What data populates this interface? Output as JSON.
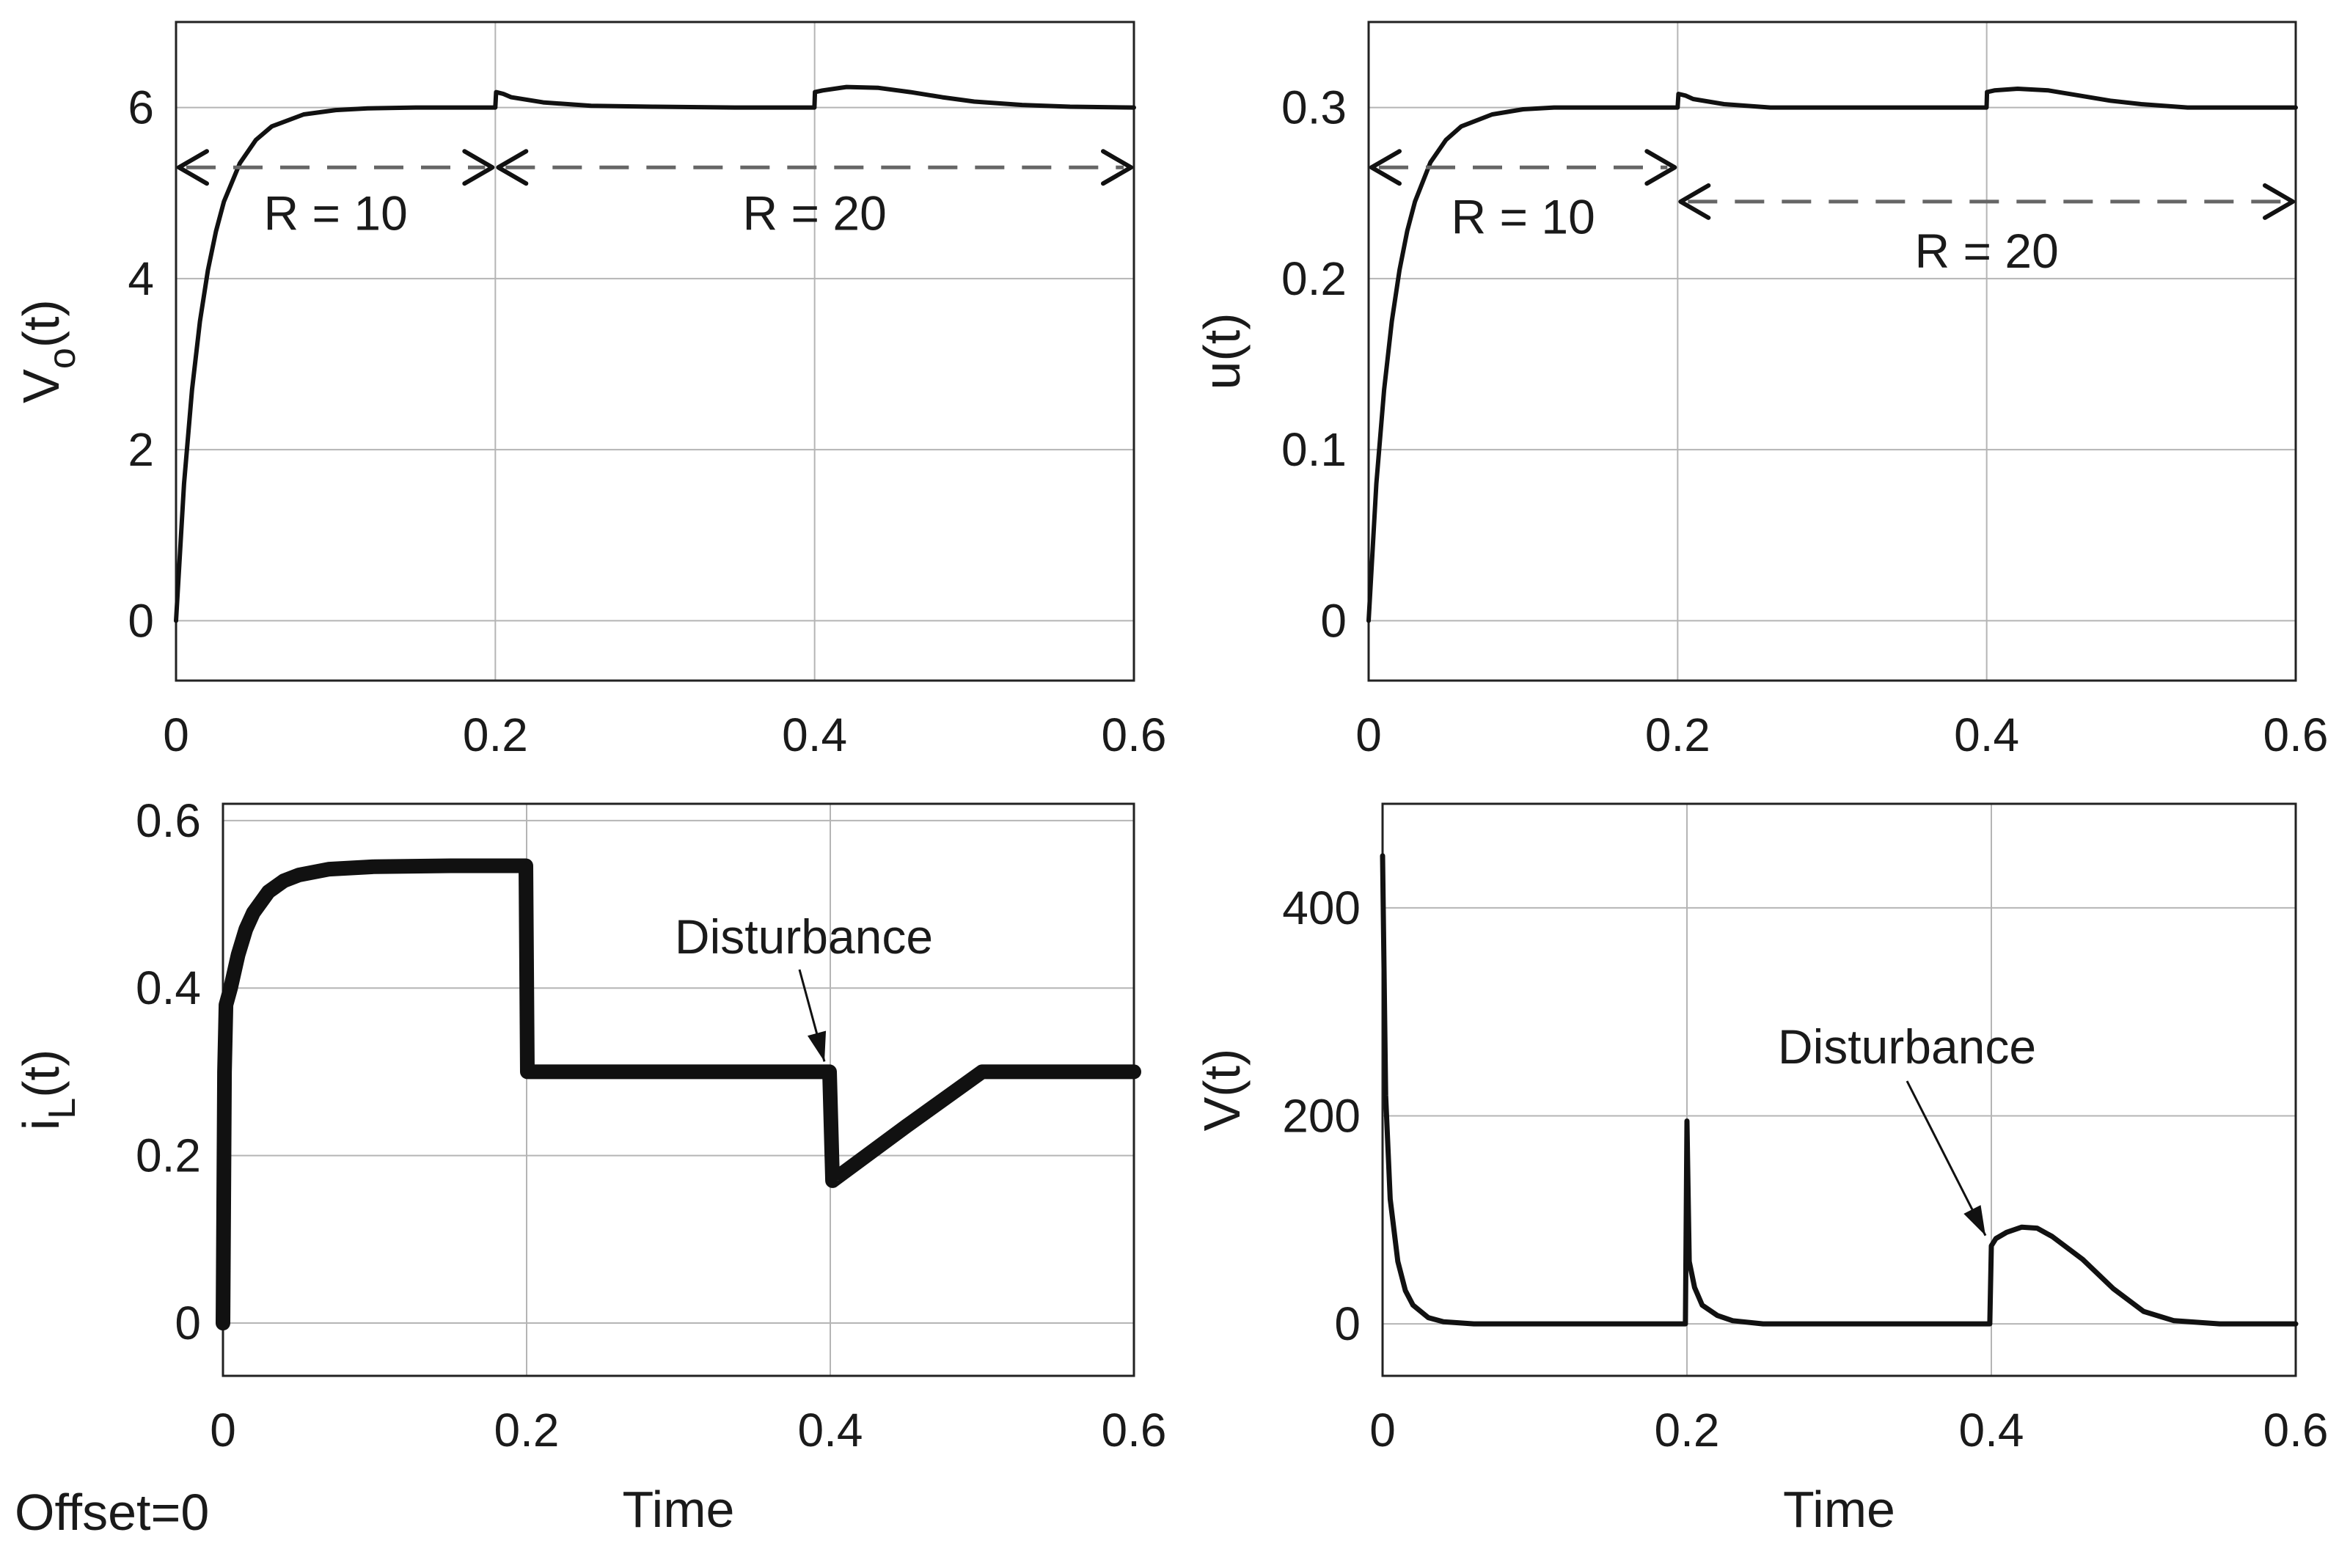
{
  "figure_note": "Offset=0",
  "chart_data": [
    {
      "id": "vo",
      "type": "line",
      "ylabel_main": "V",
      "ylabel_sub": "o",
      "ylabel_tail": "(t)",
      "xlabel": "",
      "xlim": [
        0,
        0.6
      ],
      "ylim": [
        -0.7,
        7.0
      ],
      "xticks": [
        0,
        0.2,
        0.4,
        0.6
      ],
      "xtick_labels": [
        "0",
        "0.2",
        "0.4",
        "0.6"
      ],
      "yticks": [
        0,
        2,
        4,
        6
      ],
      "ytick_labels": [
        "0",
        "2",
        "4",
        "6"
      ],
      "grid": true,
      "series": [
        {
          "name": "Vo(t)",
          "x": [
            0,
            0.005,
            0.01,
            0.015,
            0.02,
            0.025,
            0.03,
            0.04,
            0.05,
            0.06,
            0.08,
            0.1,
            0.12,
            0.15,
            0.2,
            0.2005,
            0.205,
            0.21,
            0.23,
            0.26,
            0.3,
            0.35,
            0.3999,
            0.4002,
            0.405,
            0.42,
            0.44,
            0.46,
            0.48,
            0.5,
            0.53,
            0.56,
            0.6
          ],
          "y": [
            0,
            1.6,
            2.7,
            3.5,
            4.1,
            4.55,
            4.9,
            5.35,
            5.62,
            5.78,
            5.92,
            5.97,
            5.99,
            6.0,
            6.0,
            6.18,
            6.16,
            6.12,
            6.06,
            6.02,
            6.01,
            6.0,
            6.0,
            6.18,
            6.2,
            6.24,
            6.23,
            6.18,
            6.12,
            6.07,
            6.03,
            6.01,
            6.0
          ]
        }
      ],
      "regions": [
        {
          "label": "R = 10",
          "x_start": 0,
          "x_end": 0.2,
          "y": 5.3
        },
        {
          "label": "R = 20",
          "x_start": 0.2,
          "x_end": 0.6,
          "y": 5.3
        }
      ]
    },
    {
      "id": "u",
      "type": "line",
      "ylabel_main": "u(t)",
      "ylabel_sub": "",
      "ylabel_tail": "",
      "xlabel": "",
      "xlim": [
        0,
        0.6
      ],
      "ylim": [
        -0.035,
        0.35
      ],
      "xticks": [
        0,
        0.2,
        0.4,
        0.6
      ],
      "xtick_labels": [
        "0",
        "0.2",
        "0.4",
        "0.6"
      ],
      "yticks": [
        0,
        0.1,
        0.2,
        0.3
      ],
      "ytick_labels": [
        "0",
        "0.1",
        "0.2",
        "0.3"
      ],
      "grid": true,
      "series": [
        {
          "name": "u(t)",
          "x": [
            0,
            0.005,
            0.01,
            0.015,
            0.02,
            0.025,
            0.03,
            0.04,
            0.05,
            0.06,
            0.08,
            0.1,
            0.12,
            0.15,
            0.2,
            0.2005,
            0.205,
            0.21,
            0.23,
            0.26,
            0.3,
            0.35,
            0.3999,
            0.4002,
            0.405,
            0.42,
            0.44,
            0.46,
            0.48,
            0.5,
            0.53,
            0.56,
            0.6
          ],
          "y": [
            0,
            0.08,
            0.135,
            0.175,
            0.205,
            0.228,
            0.245,
            0.268,
            0.281,
            0.289,
            0.296,
            0.299,
            0.3,
            0.3,
            0.3,
            0.308,
            0.307,
            0.305,
            0.302,
            0.3,
            0.3,
            0.3,
            0.3,
            0.309,
            0.31,
            0.311,
            0.31,
            0.307,
            0.304,
            0.302,
            0.3,
            0.3,
            0.3
          ]
        }
      ],
      "regions": [
        {
          "label": "R = 10",
          "x_start": 0,
          "x_end": 0.2,
          "y": 0.265
        },
        {
          "label": "R = 20",
          "x_start": 0.2,
          "x_end": 0.6,
          "y": 0.245
        }
      ]
    },
    {
      "id": "il",
      "type": "line",
      "ylabel_main": "i",
      "ylabel_sub": "L",
      "ylabel_tail": "(t)",
      "xlabel": "Time",
      "xlim": [
        0,
        0.6
      ],
      "ylim": [
        -0.063,
        0.62
      ],
      "xticks": [
        0,
        0.2,
        0.4,
        0.6
      ],
      "xtick_labels": [
        "0",
        "0.2",
        "0.4",
        "0.6"
      ],
      "yticks": [
        0,
        0.2,
        0.4,
        0.6
      ],
      "ytick_labels": [
        "0",
        "0.2",
        "0.4",
        "0.6"
      ],
      "grid": true,
      "series": [
        {
          "name": "iL(t)",
          "x": [
            0,
            0.001,
            0.002,
            0.005,
            0.01,
            0.015,
            0.02,
            0.03,
            0.04,
            0.05,
            0.07,
            0.1,
            0.15,
            0.1995,
            0.2005,
            0.25,
            0.3,
            0.35,
            0.3995,
            0.4015,
            0.45,
            0.5,
            0.55,
            0.6
          ],
          "y": [
            0,
            0.3,
            0.38,
            0.4,
            0.44,
            0.47,
            0.49,
            0.515,
            0.528,
            0.535,
            0.542,
            0.545,
            0.546,
            0.546,
            0.3,
            0.3,
            0.3,
            0.3,
            0.3,
            0.17,
            0.235,
            0.3,
            0.3,
            0.3
          ]
        }
      ],
      "annotations": [
        {
          "text": "Disturbance",
          "x": 0.4,
          "y": 0.3
        }
      ]
    },
    {
      "id": "v",
      "type": "line",
      "ylabel_main": "V(t)",
      "ylabel_sub": "",
      "ylabel_tail": "",
      "xlabel": "Time",
      "xlim": [
        0,
        0.6
      ],
      "ylim": [
        -50,
        500
      ],
      "xticks": [
        0,
        0.2,
        0.4,
        0.6
      ],
      "xtick_labels": [
        "0",
        "0.2",
        "0.4",
        "0.6"
      ],
      "yticks": [
        0,
        200,
        400
      ],
      "ytick_labels": [
        "0",
        "200",
        "400"
      ],
      "grid": true,
      "series": [
        {
          "name": "V(t)",
          "x": [
            0,
            0.002,
            0.005,
            0.01,
            0.015,
            0.02,
            0.03,
            0.04,
            0.06,
            0.1,
            0.199,
            0.2,
            0.2015,
            0.205,
            0.21,
            0.22,
            0.23,
            0.25,
            0.3,
            0.399,
            0.4,
            0.403,
            0.41,
            0.42,
            0.43,
            0.44,
            0.46,
            0.48,
            0.5,
            0.52,
            0.55,
            0.6
          ],
          "y": [
            450,
            220,
            120,
            60,
            32,
            18,
            6,
            2,
            0,
            0,
            0,
            195,
            60,
            35,
            18,
            8,
            3,
            0,
            0,
            0,
            75,
            82,
            88,
            93,
            92,
            84,
            62,
            34,
            12,
            3,
            0,
            0
          ]
        }
      ],
      "annotations": [
        {
          "text": "Disturbance",
          "x": 0.4,
          "y": 75
        }
      ]
    }
  ]
}
